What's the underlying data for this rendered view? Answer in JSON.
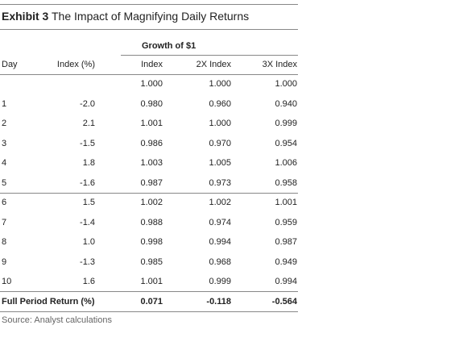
{
  "title": {
    "label": "Exhibit 3",
    "text": "The Impact of Magnifying Daily Returns"
  },
  "table": {
    "group_header": "Growth of $1",
    "columns": [
      "Day",
      "Index (%)",
      "Index",
      "2X Index",
      "3X Index"
    ],
    "rows": [
      [
        null,
        null,
        "1.000",
        "1.000",
        "1.000"
      ],
      [
        "1",
        "-2.0",
        "0.980",
        "0.960",
        "0.940"
      ],
      [
        "2",
        "2.1",
        "1.001",
        "1.000",
        "0.999"
      ],
      [
        "3",
        "-1.5",
        "0.986",
        "0.970",
        "0.954"
      ],
      [
        "4",
        "1.8",
        "1.003",
        "1.005",
        "1.006"
      ],
      [
        "5",
        "-1.6",
        "0.987",
        "0.973",
        "0.958"
      ],
      [
        "6",
        "1.5",
        "1.002",
        "1.002",
        "1.001"
      ],
      [
        "7",
        "-1.4",
        "0.988",
        "0.974",
        "0.959"
      ],
      [
        "8",
        "1.0",
        "0.998",
        "0.994",
        "0.987"
      ],
      [
        "9",
        "-1.3",
        "0.985",
        "0.968",
        "0.949"
      ],
      [
        "10",
        "1.6",
        "1.001",
        "0.999",
        "0.994"
      ]
    ],
    "total_row": [
      "Full Period Return (%)",
      "0.071",
      "-0.118",
      "-0.564"
    ]
  },
  "source": "Source: Analyst calculations"
}
